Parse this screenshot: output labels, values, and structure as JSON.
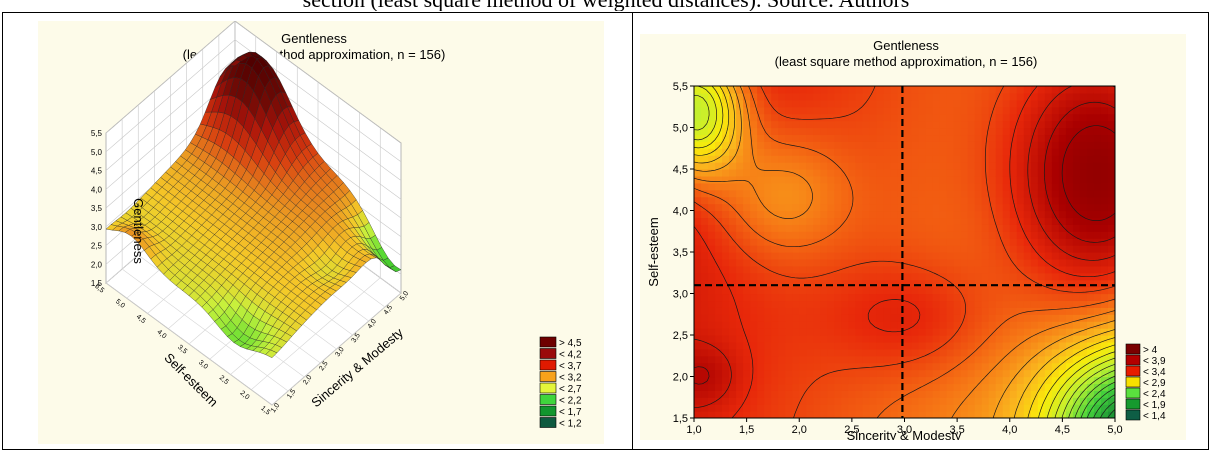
{
  "caption": "section (least square method of weighted distances). Source: Authors",
  "chart_data": [
    {
      "type": "surface3d",
      "title": "Gentleness",
      "subtitle": "(least square method approximation, n = 156)",
      "x_label": "Sincerity & Modesty",
      "y_label": "Self-esteem",
      "z_label": "Gentleness",
      "x_ticks": [
        "1,0",
        "1,5",
        "2,0",
        "2,5",
        "3,0",
        "3,5",
        "4,0",
        "4,5",
        "5,0"
      ],
      "y_ticks": [
        "1,5",
        "2,0",
        "2,5",
        "3,0",
        "3,5",
        "4,0",
        "4,5",
        "5,0",
        "5,5"
      ],
      "z_ticks": [
        "1,5",
        "2,0",
        "2,5",
        "3,0",
        "3,5",
        "4,0",
        "4,5",
        "5,0",
        "5,5"
      ],
      "xlim": [
        1.0,
        5.0
      ],
      "ylim": [
        1.5,
        5.5
      ],
      "zlim": [
        1.5,
        5.5
      ],
      "legend": {
        "position": "bottom-right",
        "entries": [
          {
            "label": "> 4,5",
            "color": "#6e0000"
          },
          {
            "label": "< 4,2",
            "color": "#9a0a0a"
          },
          {
            "label": "< 3,7",
            "color": "#e01a00"
          },
          {
            "label": "< 3,2",
            "color": "#f7a21b"
          },
          {
            "label": "< 2,7",
            "color": "#e4f53a"
          },
          {
            "label": "< 2,2",
            "color": "#3fd53c"
          },
          {
            "label": "< 1,7",
            "color": "#12962e"
          },
          {
            "label": "< 1,2",
            "color": "#0e5a3f"
          }
        ]
      }
    },
    {
      "type": "contour",
      "title": "Gentleness",
      "subtitle": "(least square method approximation, n = 156)",
      "xlabel": "Sincerity & Modesty",
      "ylabel": "Self-esteem",
      "x_ticks": [
        "1,0",
        "1,5",
        "2,0",
        "2,5",
        "3,0",
        "3,5",
        "4,0",
        "4,5",
        "5,0"
      ],
      "y_ticks": [
        "1,5",
        "2,0",
        "2,5",
        "3,0",
        "3,5",
        "4,0",
        "4,5",
        "5,0",
        "5,5"
      ],
      "xlim": [
        1.0,
        5.0
      ],
      "ylim": [
        1.5,
        5.5
      ],
      "reference_lines": {
        "x": 2.98,
        "y": 3.1
      },
      "legend": {
        "position": "bottom-right",
        "entries": [
          {
            "label": "> 4",
            "color": "#7a0000"
          },
          {
            "label": "< 3,9",
            "color": "#b30000"
          },
          {
            "label": "< 3,4",
            "color": "#e81c00"
          },
          {
            "label": "< 2,9",
            "color": "#f7e000"
          },
          {
            "label": "< 2,4",
            "color": "#5ae03e"
          },
          {
            "label": "< 1,9",
            "color": "#169a2e"
          },
          {
            "label": "< 1,4",
            "color": "#0e5e45"
          }
        ]
      }
    }
  ]
}
